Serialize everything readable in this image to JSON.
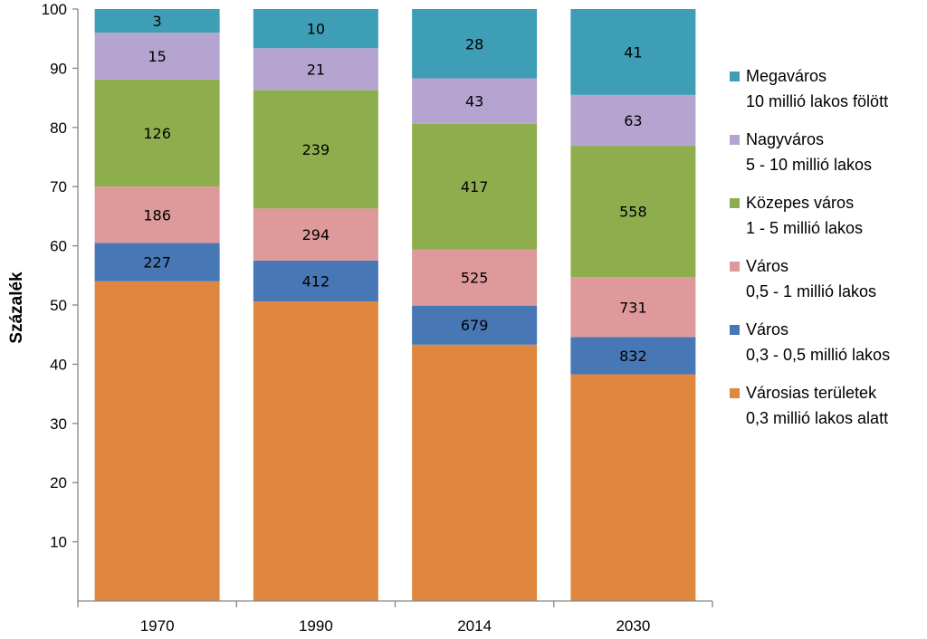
{
  "chart_data": {
    "type": "bar",
    "stacked": true,
    "categories": [
      "1970",
      "1990",
      "2014",
      "2030"
    ],
    "ylabel": "Százalék",
    "xlabel": "",
    "ylim": [
      0,
      100
    ],
    "yticks": [
      10,
      20,
      30,
      40,
      50,
      60,
      70,
      80,
      90,
      100
    ],
    "grid": false,
    "legend_position": "right",
    "series": [
      {
        "name": "Városias területek",
        "name_line2": "0,3 millió lakos alatt",
        "color": "#E0873F",
        "values": [
          54.0,
          50.6,
          43.3,
          38.3
        ],
        "labels": [
          "",
          "",
          "",
          ""
        ]
      },
      {
        "name": "Város",
        "name_line2": "0,3 - 0,5 millió lakos",
        "color": "#4877B5",
        "values": [
          6.5,
          6.9,
          6.6,
          6.3
        ],
        "labels": [
          "227",
          "412",
          "679",
          "832"
        ]
      },
      {
        "name": "Város",
        "name_line2": "0,5 - 1 millió lakos",
        "color": "#DE999A",
        "values": [
          9.5,
          8.8,
          9.5,
          10.1
        ],
        "labels": [
          "186",
          "294",
          "525",
          "731"
        ]
      },
      {
        "name": "Közepes város",
        "name_line2": "1 - 5 millió lakos",
        "color": "#8EAE4E",
        "values": [
          18.1,
          20.0,
          21.2,
          22.2
        ],
        "labels": [
          "126",
          "239",
          "417",
          "558"
        ]
      },
      {
        "name": "Nagyváros",
        "name_line2": "5 - 10 millió lakos",
        "color": "#B4A4CF",
        "values": [
          7.9,
          7.1,
          7.7,
          8.6
        ],
        "labels": [
          "15",
          "21",
          "43",
          "63"
        ]
      },
      {
        "name": "Megaváros",
        "name_line2": "10 millió lakos fölött",
        "color": "#3D9EB5",
        "values": [
          4.0,
          6.6,
          11.7,
          14.5
        ],
        "labels": [
          "3",
          "10",
          "28",
          "41"
        ]
      }
    ]
  }
}
